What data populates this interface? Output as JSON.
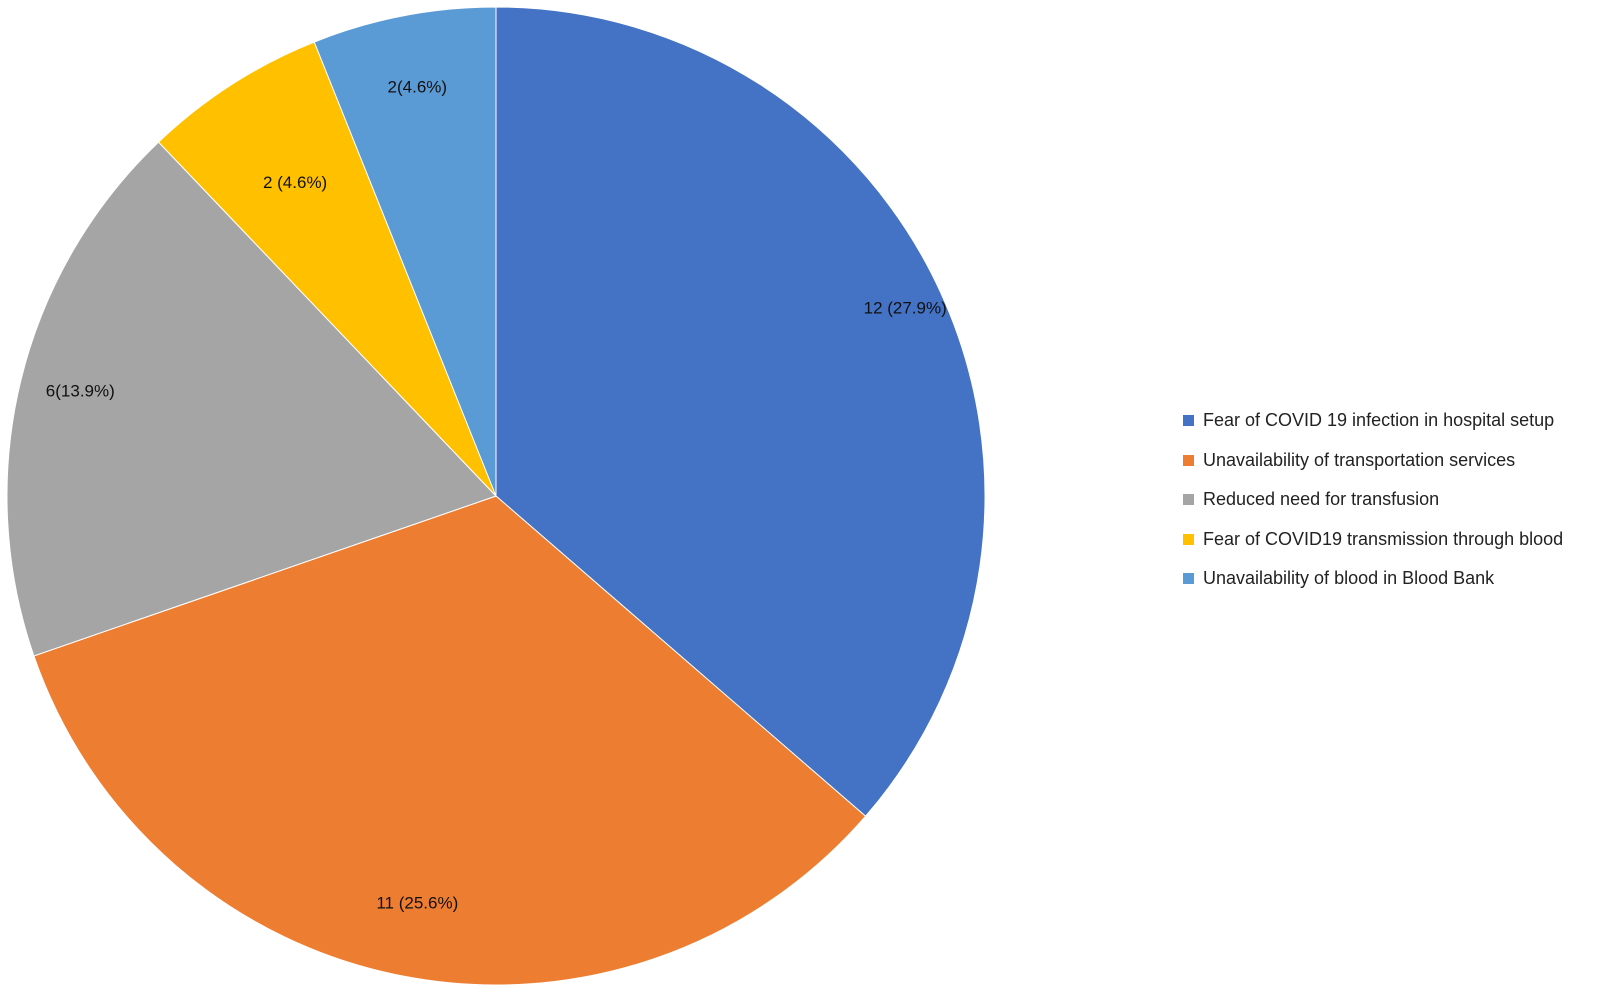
{
  "chart_data": {
    "type": "pie",
    "start_angle_deg": 0,
    "direction": "clockwise",
    "legend_position": "right",
    "slices": [
      {
        "name": "Fear of COVID 19 infection in hospital setup",
        "value": 12,
        "label": "12 (27.9%)",
        "color": "#4472C4"
      },
      {
        "name": "Unavailability of transportation services",
        "value": 11,
        "label": "11 (25.6%)",
        "color": "#ED7D31"
      },
      {
        "name": "Reduced need for transfusion",
        "value": 6,
        "label": "6(13.9%)",
        "color": "#A5A5A5"
      },
      {
        "name": "Fear of COVID19 transmission through blood",
        "value": 2,
        "label": "2 (4.6%)",
        "color": "#FFC000"
      },
      {
        "name": "Unavailability of blood in Blood Bank",
        "value": 2,
        "label": "2(4.6%)",
        "color": "#5B9BD5"
      }
    ]
  }
}
